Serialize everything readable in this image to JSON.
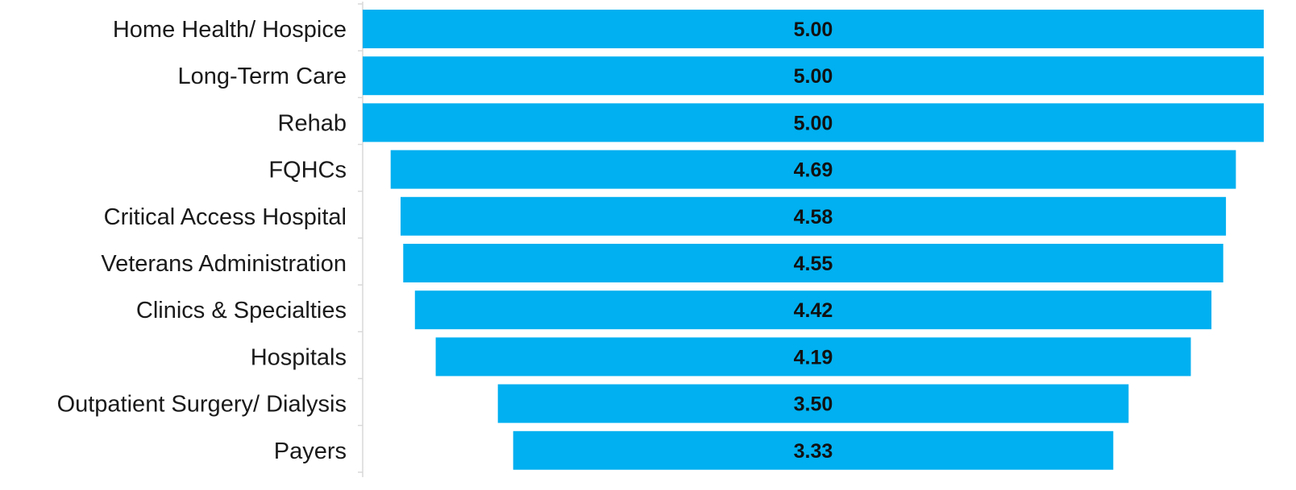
{
  "chart_data": {
    "type": "bar",
    "orientation": "horizontal",
    "layout": "funnel-centered",
    "categories": [
      "Home Health/ Hospice",
      "Long-Term Care",
      "Rehab",
      "FQHCs",
      "Critical Access Hospital",
      "Veterans Administration",
      "Clinics & Specialties",
      "Hospitals",
      "Outpatient Surgery/ Dialysis",
      "Payers"
    ],
    "values": [
      5.0,
      5.0,
      5.0,
      4.69,
      4.58,
      4.55,
      4.42,
      4.19,
      3.5,
      3.33
    ],
    "value_labels": [
      "5.00",
      "5.00",
      "5.00",
      "4.69",
      "4.58",
      "4.55",
      "4.42",
      "4.19",
      "3.50",
      "3.33"
    ],
    "bar_color": "#00b0f0",
    "value_label_color": "#111111",
    "title": "",
    "xlabel": "",
    "ylabel": "",
    "xlim": [
      0,
      5
    ],
    "grid": false,
    "legend": "none"
  }
}
